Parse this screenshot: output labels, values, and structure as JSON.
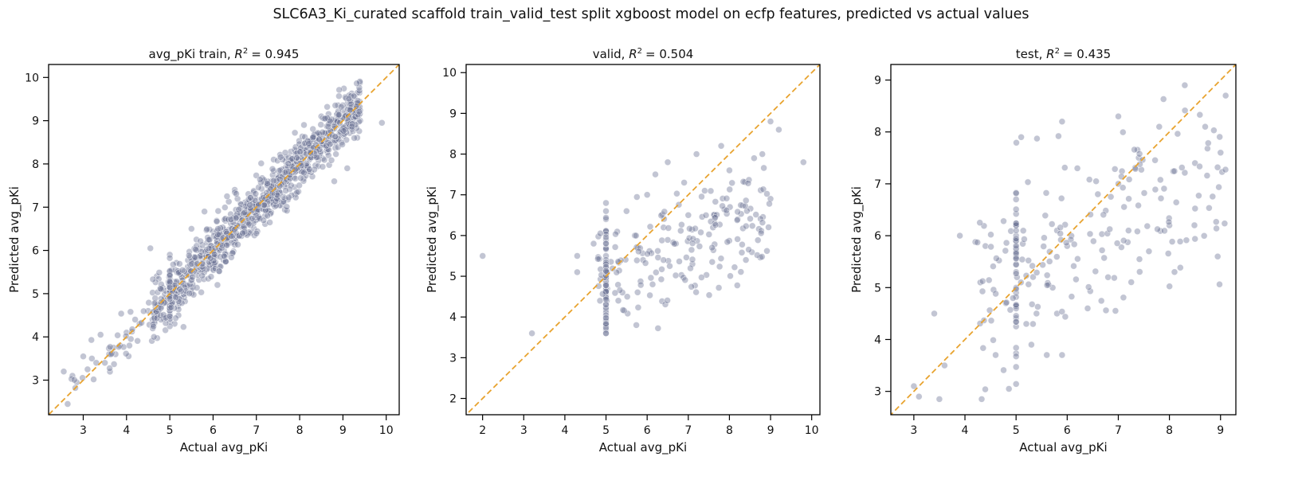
{
  "suptitle": "SLC6A3_Ki_curated  scaffold train_valid_test split xgboost model on ecfp features, predicted vs actual values",
  "colors": {
    "points": "#6e7496",
    "diagonal": "#e8a32f",
    "axes": "#000000"
  },
  "chart_data": [
    {
      "type": "scatter",
      "title_prefix": "avg_pKi train, ",
      "r2_label": "R",
      "r2_value": "= 0.945",
      "xlabel": "Actual avg_pKi",
      "ylabel": "Predicted avg_pKi",
      "xlim": [
        2.2,
        10.3
      ],
      "ylim": [
        2.2,
        10.3
      ],
      "xticks": [
        "3",
        "4",
        "5",
        "6",
        "7",
        "8",
        "9",
        "10"
      ],
      "yticks": [
        "3",
        "4",
        "5",
        "6",
        "7",
        "8",
        "9",
        "10"
      ],
      "diagonal": true,
      "points_summary": {
        "n_approx": 1150,
        "x_range": [
          2.5,
          9.9
        ],
        "y_range": [
          2.9,
          9.1
        ],
        "noise_sd": 0.3
      },
      "points": [
        [
          2.55,
          3.2
        ],
        [
          2.75,
          3.1
        ],
        [
          2.85,
          2.95
        ],
        [
          3.0,
          3.55
        ],
        [
          3.1,
          3.25
        ],
        [
          3.2,
          3.5
        ],
        [
          3.3,
          3.4
        ],
        [
          3.4,
          4.05
        ],
        [
          3.5,
          3.4
        ],
        [
          3.6,
          3.6
        ],
        [
          3.7,
          3.75
        ],
        [
          3.85,
          3.8
        ],
        [
          4.0,
          4.1
        ],
        [
          4.1,
          3.95
        ],
        [
          4.2,
          4.4
        ],
        [
          4.3,
          4.3
        ],
        [
          4.5,
          4.6
        ],
        [
          4.55,
          6.05
        ],
        [
          4.6,
          4.4
        ],
        [
          4.8,
          4.7
        ],
        [
          5.0,
          5.0
        ],
        [
          5.0,
          5.9
        ],
        [
          5.0,
          4.7
        ],
        [
          5.0,
          5.5
        ],
        [
          5.2,
          4.5
        ],
        [
          5.5,
          6.5
        ],
        [
          5.8,
          6.9
        ],
        [
          6.1,
          5.2
        ],
        [
          6.5,
          7.4
        ],
        [
          6.8,
          6.4
        ],
        [
          7.2,
          6.8
        ],
        [
          7.4,
          8.1
        ],
        [
          7.9,
          7.3
        ],
        [
          8.1,
          8.9
        ],
        [
          8.5,
          9.1
        ],
        [
          8.8,
          7.6
        ],
        [
          9.0,
          8.8
        ],
        [
          9.1,
          7.9
        ],
        [
          9.3,
          9.1
        ],
        [
          9.4,
          9.0
        ],
        [
          9.9,
          8.95
        ]
      ]
    },
    {
      "type": "scatter",
      "title_prefix": "valid, ",
      "r2_label": "R",
      "r2_value": "= 0.504",
      "xlabel": "Actual avg_pKi",
      "ylabel": "Predicted avg_pKi",
      "xlim": [
        1.6,
        10.2
      ],
      "ylim": [
        1.6,
        10.2
      ],
      "xticks": [
        "2",
        "3",
        "4",
        "5",
        "6",
        "7",
        "8",
        "9",
        "10"
      ],
      "yticks": [
        "2",
        "3",
        "4",
        "5",
        "6",
        "7",
        "8",
        "9",
        "10"
      ],
      "diagonal": true,
      "points_summary": {
        "n_approx": 280,
        "x_range": [
          2.0,
          9.8
        ],
        "y_range": [
          3.6,
          8.8
        ]
      },
      "points": [
        [
          2.0,
          5.5
        ],
        [
          3.2,
          3.6
        ],
        [
          4.3,
          5.5
        ],
        [
          4.3,
          5.1
        ],
        [
          4.7,
          5.8
        ],
        [
          5.0,
          4.6
        ],
        [
          5.0,
          6.8
        ],
        [
          5.0,
          5.0
        ],
        [
          5.0,
          6.4
        ],
        [
          5.0,
          5.9
        ],
        [
          5.0,
          5.5
        ],
        [
          5.0,
          6.1
        ],
        [
          5.0,
          5.3
        ],
        [
          5.0,
          6.6
        ],
        [
          5.0,
          4.9
        ],
        [
          5.0,
          5.7
        ],
        [
          5.3,
          4.4
        ],
        [
          5.4,
          4.6
        ],
        [
          5.5,
          6.6
        ],
        [
          5.7,
          6.0
        ],
        [
          5.9,
          5.4
        ],
        [
          6.0,
          7.0
        ],
        [
          6.2,
          7.5
        ],
        [
          6.4,
          6.2
        ],
        [
          6.5,
          7.8
        ],
        [
          6.7,
          5.8
        ],
        [
          6.9,
          7.3
        ],
        [
          7.0,
          6.5
        ],
        [
          7.1,
          5.3
        ],
        [
          7.2,
          8.0
        ],
        [
          7.4,
          7.1
        ],
        [
          7.6,
          6.2
        ],
        [
          7.8,
          8.2
        ],
        [
          8.0,
          7.6
        ],
        [
          8.2,
          6.4
        ],
        [
          8.4,
          5.4
        ],
        [
          8.6,
          7.9
        ],
        [
          8.8,
          8.0
        ],
        [
          9.0,
          6.9
        ],
        [
          9.0,
          8.8
        ],
        [
          9.2,
          8.6
        ],
        [
          9.8,
          7.8
        ]
      ]
    },
    {
      "type": "scatter",
      "title_prefix": "test, ",
      "r2_label": "R",
      "r2_value": "= 0.435",
      "xlabel": "Actual avg_pKi",
      "ylabel": "Predicted avg_pKi",
      "xlim": [
        2.55,
        9.3
      ],
      "ylim": [
        2.55,
        9.3
      ],
      "xticks": [
        "3",
        "4",
        "5",
        "6",
        "7",
        "8",
        "9"
      ],
      "yticks": [
        "3",
        "4",
        "5",
        "6",
        "7",
        "8",
        "9"
      ],
      "diagonal": true,
      "points_summary": {
        "n_approx": 260,
        "x_range": [
          3.0,
          9.1
        ],
        "y_range": [
          2.85,
          8.95
        ]
      },
      "points": [
        [
          3.0,
          3.1
        ],
        [
          3.1,
          2.9
        ],
        [
          3.4,
          4.5
        ],
        [
          3.5,
          2.85
        ],
        [
          3.6,
          3.5
        ],
        [
          3.9,
          6.0
        ],
        [
          4.3,
          5.1
        ],
        [
          4.4,
          5.8
        ],
        [
          4.6,
          3.7
        ],
        [
          4.8,
          4.7
        ],
        [
          5.0,
          6.7
        ],
        [
          5.0,
          6.2
        ],
        [
          5.0,
          5.6
        ],
        [
          5.0,
          5.3
        ],
        [
          5.0,
          4.9
        ],
        [
          5.0,
          6.0
        ],
        [
          5.1,
          7.9
        ],
        [
          5.2,
          4.3
        ],
        [
          5.3,
          3.9
        ],
        [
          5.4,
          4.5
        ],
        [
          5.6,
          3.7
        ],
        [
          5.8,
          4.5
        ],
        [
          5.8,
          6.1
        ],
        [
          5.9,
          8.2
        ],
        [
          5.9,
          3.7
        ],
        [
          6.0,
          5.8
        ],
        [
          6.2,
          7.3
        ],
        [
          6.4,
          4.6
        ],
        [
          6.6,
          6.8
        ],
        [
          6.8,
          5.2
        ],
        [
          7.0,
          8.3
        ],
        [
          7.0,
          7.0
        ],
        [
          7.2,
          6.1
        ],
        [
          7.4,
          7.5
        ],
        [
          7.6,
          5.7
        ],
        [
          7.8,
          8.1
        ],
        [
          8.0,
          6.2
        ],
        [
          8.1,
          5.3
        ],
        [
          8.3,
          8.9
        ],
        [
          8.5,
          7.4
        ],
        [
          8.7,
          8.1
        ],
        [
          9.0,
          7.6
        ],
        [
          9.1,
          8.7
        ]
      ]
    }
  ]
}
